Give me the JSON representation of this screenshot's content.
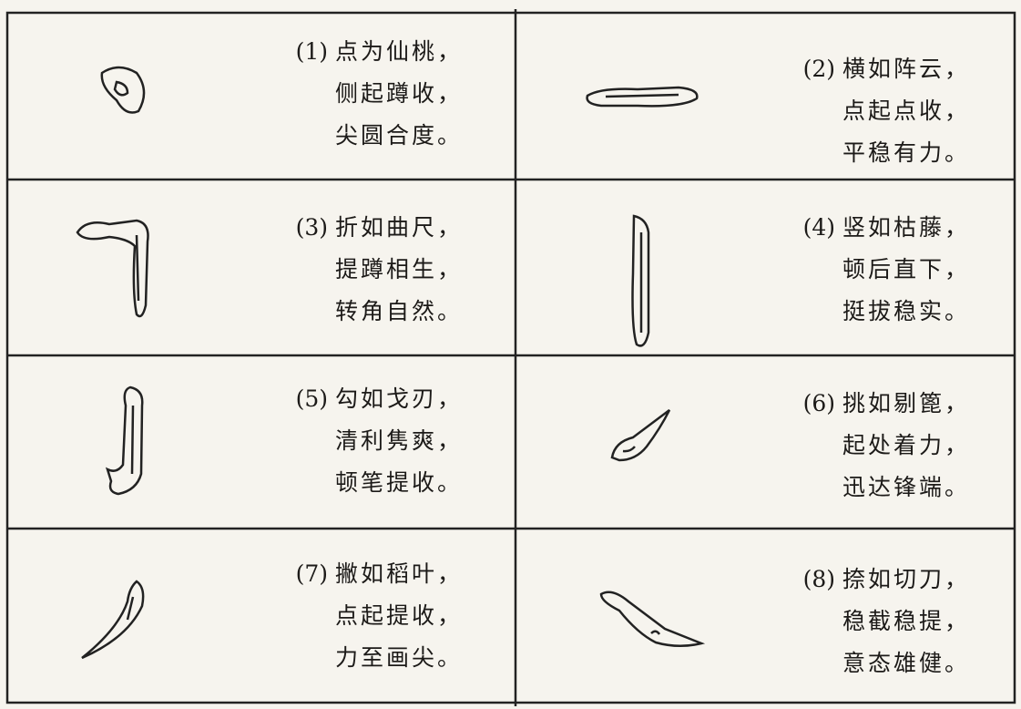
{
  "cells": [
    {
      "number": "(1)",
      "lines": [
        "点为仙桃，",
        "侧起蹲收，",
        "尖圆合度。"
      ]
    },
    {
      "number": "(2)",
      "lines": [
        "横如阵云，",
        "点起点收，",
        "平稳有力。"
      ]
    },
    {
      "number": "(3)",
      "lines": [
        "折如曲尺，",
        "提蹲相生，",
        "转角自然。"
      ]
    },
    {
      "number": "(4)",
      "lines": [
        "竖如枯藤，",
        "顿后直下，",
        "挺拔稳实。"
      ]
    },
    {
      "number": "(5)",
      "lines": [
        "勾如戈刃，",
        "清利隽爽，",
        "顿笔提收。"
      ]
    },
    {
      "number": "(6)",
      "lines": [
        "挑如剔篦，",
        "起处着力，",
        "迅达锋端。"
      ]
    },
    {
      "number": "(7)",
      "lines": [
        "撇如稻叶，",
        "点起提收，",
        "力至画尖。"
      ]
    },
    {
      "number": "(8)",
      "lines": [
        "捺如切刀，",
        "稳截稳提，",
        "意态雄健。"
      ]
    }
  ]
}
